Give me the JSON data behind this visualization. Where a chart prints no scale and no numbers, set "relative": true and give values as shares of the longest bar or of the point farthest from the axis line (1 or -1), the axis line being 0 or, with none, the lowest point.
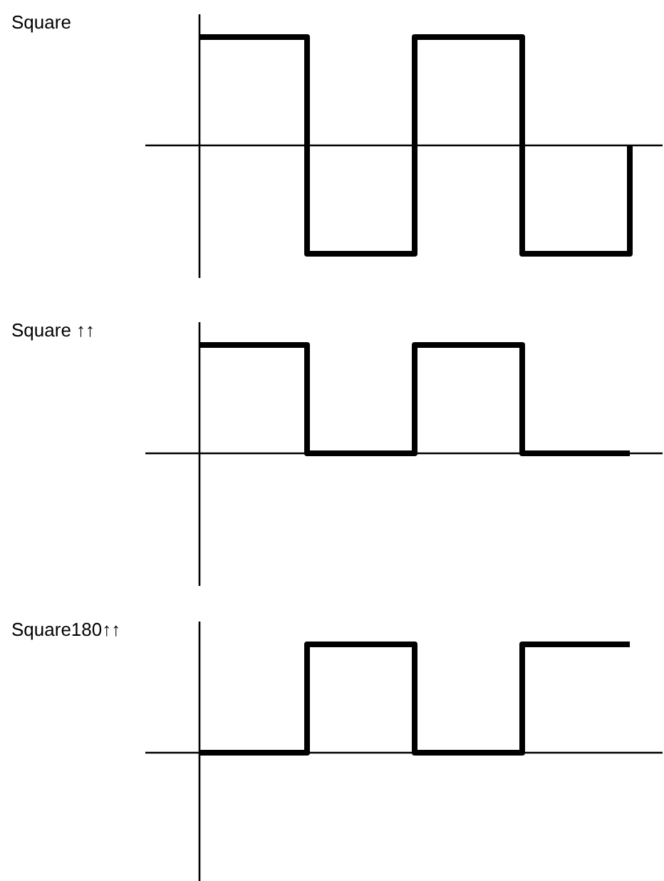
{
  "chart_data": [
    {
      "type": "step",
      "title": "Square",
      "relative": true,
      "categories": [
        null,
        null,
        null,
        null,
        null
      ],
      "values": [
        1,
        -1,
        1,
        -1,
        0
      ],
      "color": "#000000"
    },
    {
      "type": "step",
      "title": "Square ↑↑",
      "relative": true,
      "categories": [
        null,
        null,
        null,
        null,
        null
      ],
      "values": [
        1,
        0,
        1,
        0,
        0
      ],
      "color": "#000000"
    },
    {
      "type": "step",
      "title": "Square180↑↑",
      "relative": true,
      "categories": [
        null,
        null,
        null,
        null,
        null
      ],
      "values": [
        0,
        1,
        0,
        1,
        1
      ],
      "color": "#000000"
    }
  ]
}
